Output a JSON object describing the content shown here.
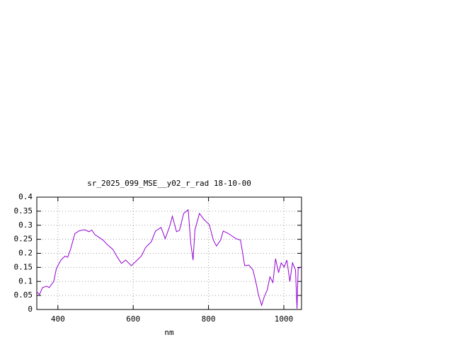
{
  "chart_data": {
    "type": "line",
    "title": "sr_2025_099_MSE__y02_r_rad 18-10-00",
    "x_label": "nm",
    "x": [
      344,
      351,
      359,
      370,
      377,
      389,
      396,
      408,
      419,
      426,
      434,
      445,
      456,
      471,
      483,
      490,
      498,
      509,
      520,
      531,
      546,
      558,
      569,
      580,
      595,
      607,
      622,
      633,
      648,
      659,
      674,
      685,
      697,
      704,
      715,
      723,
      734,
      746,
      753,
      759,
      764,
      776,
      787,
      802,
      813,
      821,
      832,
      839,
      851,
      862,
      873,
      885,
      896,
      907,
      918,
      926,
      933,
      941,
      948,
      956,
      963,
      971,
      978,
      986,
      993,
      1001,
      1008,
      1016,
      1023,
      1031,
      1035,
      1038,
      1046
    ],
    "series": [
      {
        "color": "#9400d3",
        "values": [
          0.063,
          0.053,
          0.078,
          0.083,
          0.078,
          0.1,
          0.146,
          0.176,
          0.19,
          0.186,
          0.216,
          0.27,
          0.28,
          0.284,
          0.277,
          0.283,
          0.267,
          0.257,
          0.247,
          0.231,
          0.214,
          0.186,
          0.164,
          0.176,
          0.156,
          0.171,
          0.191,
          0.221,
          0.241,
          0.279,
          0.292,
          0.252,
          0.297,
          0.332,
          0.277,
          0.282,
          0.342,
          0.355,
          0.234,
          0.176,
          0.284,
          0.342,
          0.322,
          0.302,
          0.247,
          0.226,
          0.247,
          0.279,
          0.272,
          0.262,
          0.252,
          0.247,
          0.156,
          0.158,
          0.141,
          0.096,
          0.05,
          0.015,
          0.045,
          0.07,
          0.116,
          0.096,
          0.181,
          0.131,
          0.166,
          0.151,
          0.176,
          0.1,
          0.166,
          0.141,
          0.003,
          0.146,
          0.151
        ]
      }
    ],
    "xlim": [
      344,
      1047
    ],
    "ylim": [
      0,
      0.4
    ],
    "xticks": [
      400,
      600,
      800,
      1000
    ],
    "yticks": [
      0,
      0.05,
      0.1,
      0.15,
      0.2,
      0.25,
      0.3,
      0.35,
      0.4
    ],
    "grid": true
  }
}
